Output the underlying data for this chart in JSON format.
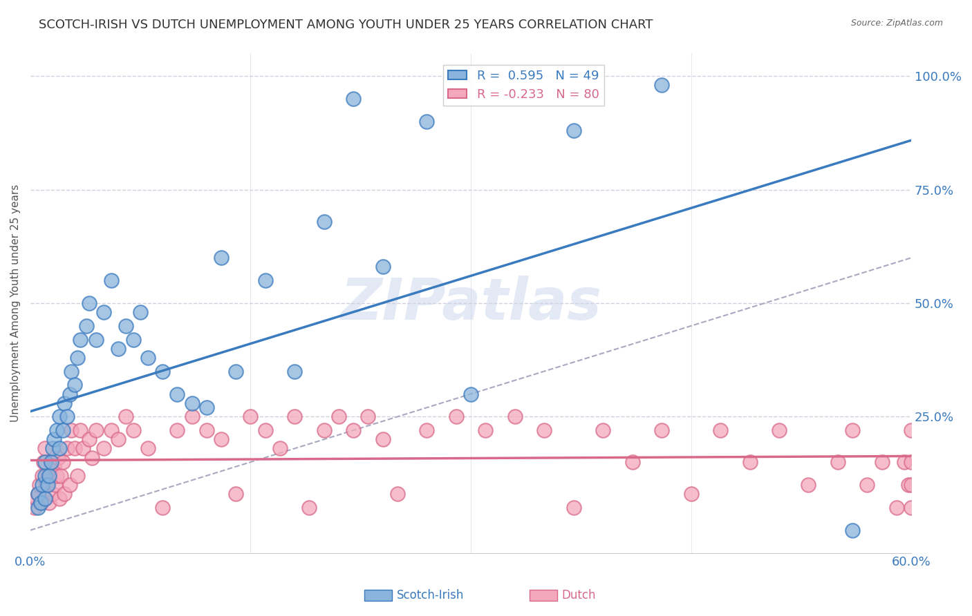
{
  "title": "SCOTCH-IRISH VS DUTCH UNEMPLOYMENT AMONG YOUTH UNDER 25 YEARS CORRELATION CHART",
  "source": "Source: ZipAtlas.com",
  "ylabel": "Unemployment Among Youth under 25 years",
  "xlim": [
    0.0,
    0.6
  ],
  "ylim": [
    -0.05,
    1.05
  ],
  "scotch_irish_color": "#8ab4dc",
  "dutch_color": "#f4a8bc",
  "scotch_irish_line_color": "#3a7abf",
  "dutch_line_color": "#d9698a",
  "identity_line_color": "#a8a8c0",
  "legend_r_scotch": "R =  0.595",
  "legend_n_scotch": "N = 49",
  "legend_r_dutch": "R = -0.233",
  "legend_n_dutch": "N = 80",
  "scotch_irish_x": [
    0.005,
    0.005,
    0.007,
    0.008,
    0.01,
    0.01,
    0.01,
    0.012,
    0.013,
    0.014,
    0.015,
    0.016,
    0.018,
    0.02,
    0.02,
    0.022,
    0.023,
    0.025,
    0.027,
    0.028,
    0.03,
    0.032,
    0.034,
    0.038,
    0.04,
    0.045,
    0.05,
    0.055,
    0.06,
    0.065,
    0.07,
    0.075,
    0.08,
    0.09,
    0.1,
    0.11,
    0.12,
    0.13,
    0.14,
    0.16,
    0.18,
    0.2,
    0.22,
    0.24,
    0.27,
    0.3,
    0.37,
    0.43,
    0.56
  ],
  "scotch_irish_y": [
    0.05,
    0.08,
    0.06,
    0.1,
    0.07,
    0.12,
    0.15,
    0.1,
    0.12,
    0.15,
    0.18,
    0.2,
    0.22,
    0.18,
    0.25,
    0.22,
    0.28,
    0.25,
    0.3,
    0.35,
    0.32,
    0.38,
    0.42,
    0.45,
    0.5,
    0.42,
    0.48,
    0.55,
    0.4,
    0.45,
    0.42,
    0.48,
    0.38,
    0.35,
    0.3,
    0.28,
    0.27,
    0.6,
    0.35,
    0.55,
    0.35,
    0.68,
    0.95,
    0.58,
    0.9,
    0.3,
    0.88,
    0.98,
    0.0
  ],
  "dutch_x": [
    0.003,
    0.004,
    0.005,
    0.006,
    0.007,
    0.008,
    0.009,
    0.01,
    0.01,
    0.011,
    0.012,
    0.013,
    0.014,
    0.015,
    0.016,
    0.017,
    0.018,
    0.019,
    0.02,
    0.021,
    0.022,
    0.023,
    0.025,
    0.027,
    0.028,
    0.03,
    0.032,
    0.034,
    0.036,
    0.04,
    0.042,
    0.045,
    0.05,
    0.055,
    0.06,
    0.065,
    0.07,
    0.08,
    0.09,
    0.1,
    0.11,
    0.12,
    0.13,
    0.14,
    0.15,
    0.16,
    0.17,
    0.18,
    0.19,
    0.2,
    0.21,
    0.22,
    0.23,
    0.24,
    0.25,
    0.27,
    0.29,
    0.31,
    0.33,
    0.35,
    0.37,
    0.39,
    0.41,
    0.43,
    0.45,
    0.47,
    0.49,
    0.51,
    0.53,
    0.55,
    0.56,
    0.57,
    0.58,
    0.59,
    0.595,
    0.598,
    0.6,
    0.6,
    0.6,
    0.6
  ],
  "dutch_y": [
    0.05,
    0.07,
    0.08,
    0.1,
    0.06,
    0.12,
    0.15,
    0.07,
    0.18,
    0.1,
    0.12,
    0.06,
    0.15,
    0.08,
    0.14,
    0.1,
    0.12,
    0.16,
    0.07,
    0.12,
    0.15,
    0.08,
    0.18,
    0.1,
    0.22,
    0.18,
    0.12,
    0.22,
    0.18,
    0.2,
    0.16,
    0.22,
    0.18,
    0.22,
    0.2,
    0.25,
    0.22,
    0.18,
    0.05,
    0.22,
    0.25,
    0.22,
    0.2,
    0.08,
    0.25,
    0.22,
    0.18,
    0.25,
    0.05,
    0.22,
    0.25,
    0.22,
    0.25,
    0.2,
    0.08,
    0.22,
    0.25,
    0.22,
    0.25,
    0.22,
    0.05,
    0.22,
    0.15,
    0.22,
    0.08,
    0.22,
    0.15,
    0.22,
    0.1,
    0.15,
    0.22,
    0.1,
    0.15,
    0.05,
    0.15,
    0.1,
    0.22,
    0.05,
    0.1,
    0.15
  ],
  "watermark": "ZIPatlas",
  "background_color": "#ffffff",
  "grid_color": "#d0d0e0",
  "title_fontsize": 13,
  "tick_label_color": "#3a7abf"
}
